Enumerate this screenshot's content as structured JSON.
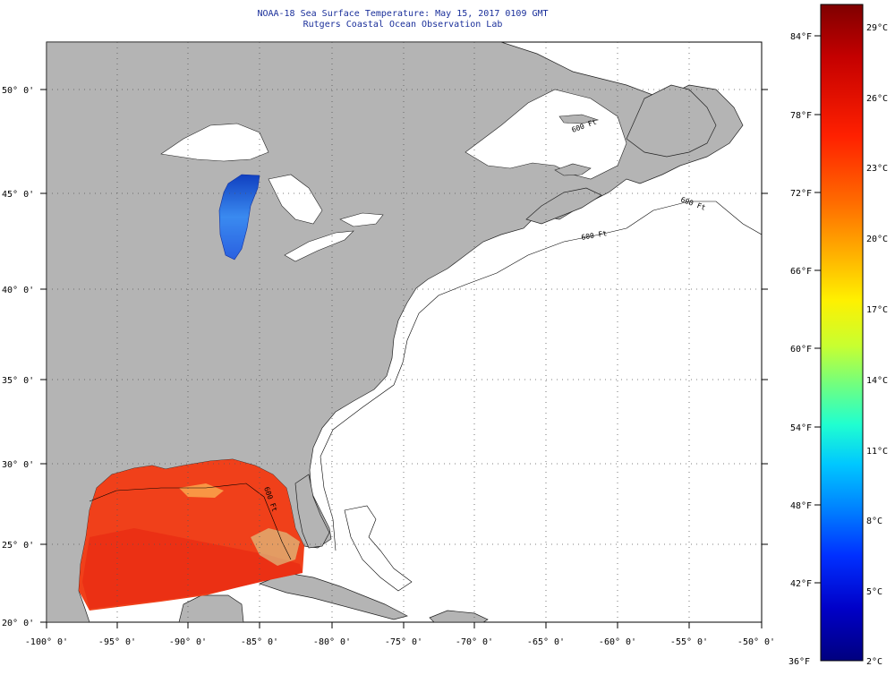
{
  "title": {
    "line1": "NOAA-18 Sea Surface Temperature:  May 15, 2017 0109 GMT",
    "line2": "Rutgers Coastal Ocean Observation Lab"
  },
  "axes": {
    "lon_labels": [
      "-100° 0'",
      "-95° 0'",
      "-90° 0'",
      "-85° 0'",
      "-80° 0'",
      "-75° 0'",
      "-70° 0'",
      "-65° 0'",
      "-60° 0'",
      "-55° 0'",
      "-50° 0'"
    ],
    "lat_labels": [
      "50° 0'",
      "45° 0'",
      "40° 0'",
      "35° 0'",
      "30° 0'",
      "25° 0'",
      "20° 0'"
    ],
    "lon_range": [
      -100,
      -50
    ],
    "lat_range": [
      20,
      52.5
    ],
    "grid": "dotted"
  },
  "colorbar": {
    "fahrenheit_labels": [
      "84°F",
      "78°F",
      "72°F",
      "66°F",
      "60°F",
      "54°F",
      "48°F",
      "42°F",
      "36°F"
    ],
    "celsius_labels": [
      "29°C",
      "26°C",
      "23°C",
      "20°C",
      "17°C",
      "14°C",
      "11°C",
      "8°C",
      "5°C",
      "2°C"
    ],
    "celsius_range": [
      2,
      30
    ],
    "colors": [
      "#7f0000",
      "#c40000",
      "#ff2000",
      "#ff6a00",
      "#ffb000",
      "#fff000",
      "#c8ff30",
      "#70ff80",
      "#20ffd0",
      "#00c8ff",
      "#0080ff",
      "#0030ff",
      "#0000c8",
      "#00007f"
    ]
  },
  "isobath_labels": [
    "600 Ft",
    "600 Ft",
    "600 Ft",
    "600 Ft"
  ],
  "colors": {
    "land": "#b4b4b4",
    "ocean": "#ffffff",
    "title": "#1a2f9a",
    "sst_gulf": "#f0401a",
    "lake": "#3070e0"
  }
}
